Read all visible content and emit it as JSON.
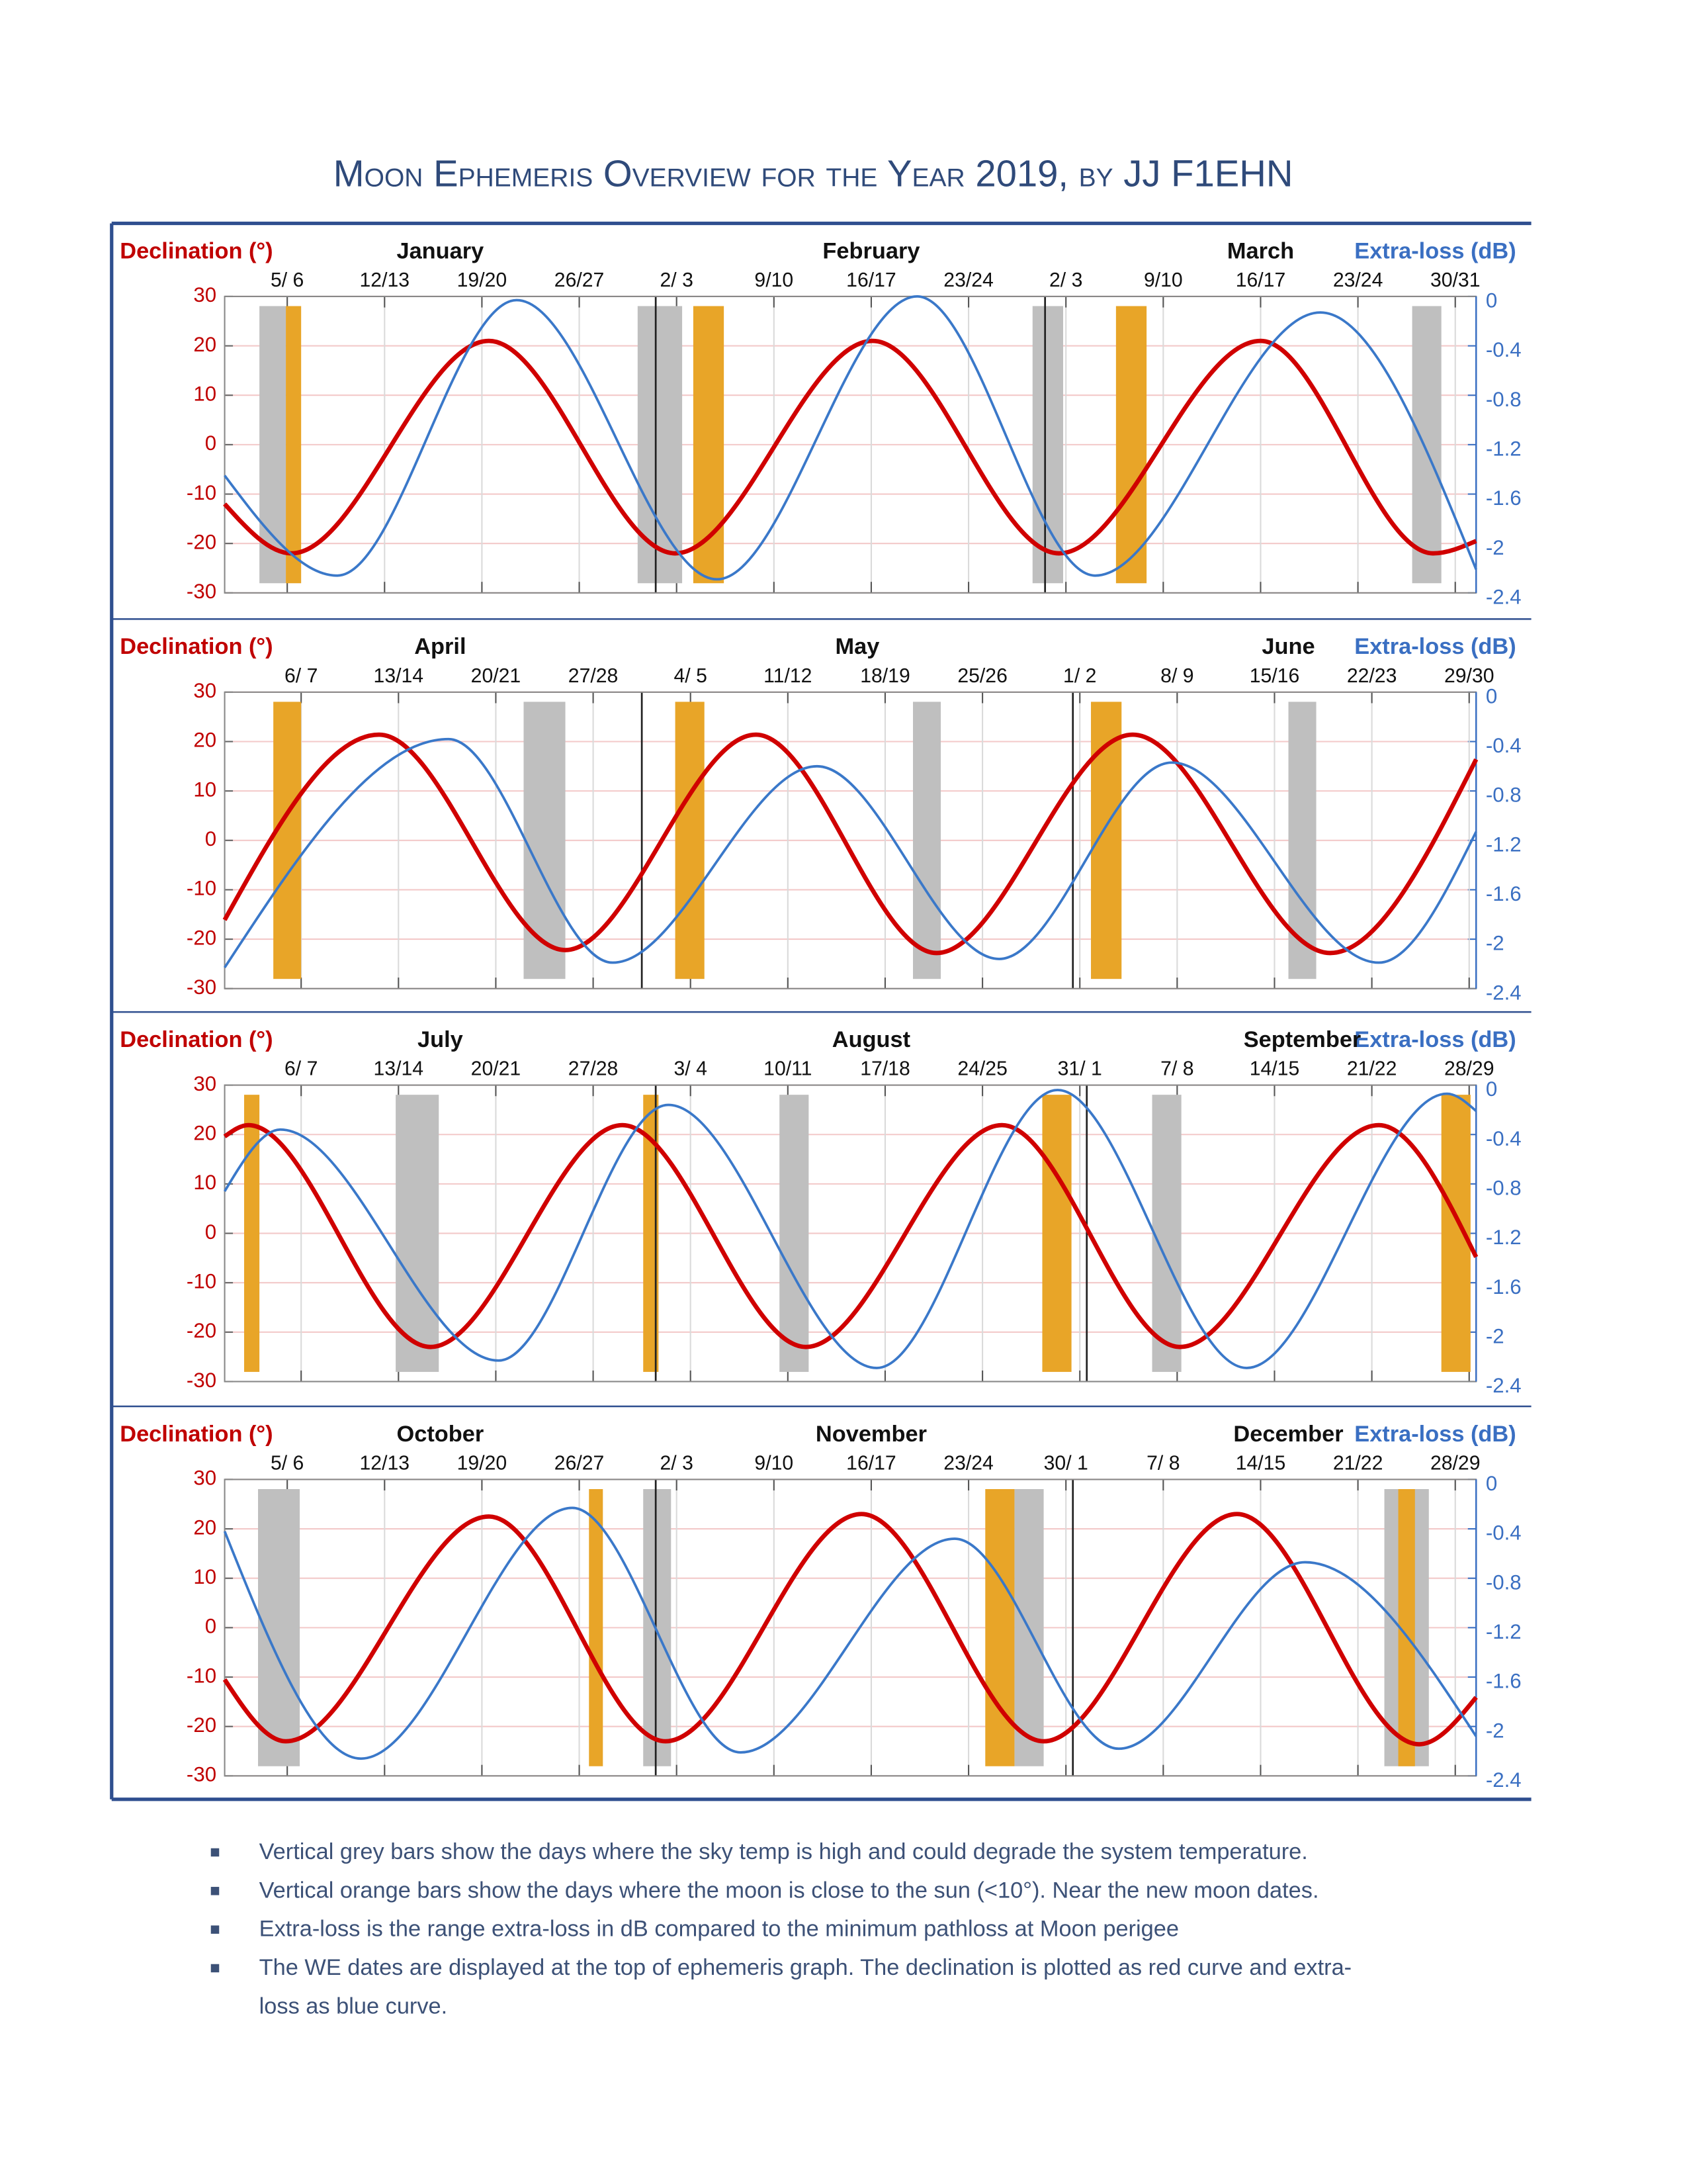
{
  "title": "Moon Ephemeris Overview for the Year 2019, by JJ F1EHN",
  "notes": [
    [
      "Vertical grey bars show the days where the sky temp is high and could degrade the system temperature."
    ],
    [
      "Vertical orange bars show the days where the moon is close to the sun (<10°). Near the new moon dates."
    ],
    [
      "Extra-loss is the range extra-loss in dB compared to the minimum pathloss at Moon perigee"
    ],
    [
      "The WE dates are displayed at the top of ephemeris graph. The declination is plotted as red curve and extra-",
      "loss as blue curve."
    ]
  ],
  "chart_data": [
    {
      "type": "line",
      "y_label": "Declination (°)",
      "y2_label": "Extra-loss (dB)",
      "months": [
        "January",
        "February",
        "March"
      ],
      "month_starts": [
        0,
        31,
        59
      ],
      "xlim": [
        0,
        90
      ],
      "xticks": [
        {
          "value": 4.5,
          "label": "5/ 6"
        },
        {
          "value": 11.5,
          "label": "12/13"
        },
        {
          "value": 18.5,
          "label": "19/20"
        },
        {
          "value": 25.5,
          "label": "26/27"
        },
        {
          "value": 32.5,
          "label": "2/ 3"
        },
        {
          "value": 39.5,
          "label": "9/10"
        },
        {
          "value": 46.5,
          "label": "16/17"
        },
        {
          "value": 53.5,
          "label": "23/24"
        },
        {
          "value": 60.5,
          "label": "2/ 3"
        },
        {
          "value": 67.5,
          "label": "9/10"
        },
        {
          "value": 74.5,
          "label": "16/17"
        },
        {
          "value": 81.5,
          "label": "23/24"
        },
        {
          "value": 88.5,
          "label": "30/31"
        }
      ],
      "ylim": [
        -30,
        30
      ],
      "yticks": [
        30,
        20,
        10,
        0,
        -10,
        -20,
        -30
      ],
      "y2lim": [
        -2.4,
        0
      ],
      "y2ticks": [
        0,
        -0.4,
        -0.8,
        -1.2,
        -1.6,
        -2,
        -2.4
      ],
      "grid": true,
      "bands": [
        {
          "color": "#bfbfbf",
          "ranges": [
            [
              2.5,
              4.4
            ],
            [
              29.7,
              32.9
            ],
            [
              58.1,
              60.3
            ],
            [
              85.4,
              87.5
            ]
          ]
        },
        {
          "color": "#e8a528",
          "ranges": [
            [
              4.4,
              5.5
            ],
            [
              33.7,
              35.9
            ],
            [
              64.1,
              66.3
            ]
          ]
        }
      ],
      "series": [
        {
          "color": "#d00000",
          "x": [
            0,
            4.8,
            19,
            32.4,
            46.6,
            60,
            74.5,
            86.9,
            90
          ],
          "values": [
            -12,
            -22,
            21,
            -22,
            21,
            -22,
            21,
            -22,
            -19.5
          ]
        },
        {
          "color": "#3a78c9",
          "axis": "y2",
          "x": [
            0,
            8.1,
            21,
            35.4,
            49.8,
            62.6,
            78.8,
            90
          ],
          "values": [
            -1.45,
            -2.26,
            -0.03,
            -2.29,
            0,
            -2.26,
            -0.13,
            -2.21
          ]
        }
      ]
    },
    {
      "type": "line",
      "y_label": "Declination (°)",
      "y2_label": "Extra-loss (dB)",
      "months": [
        "April",
        "May",
        "June"
      ],
      "month_starts": [
        0,
        30,
        61
      ],
      "xlim": [
        0,
        90
      ],
      "xticks": [
        {
          "value": 5.5,
          "label": "6/ 7"
        },
        {
          "value": 12.5,
          "label": "13/14"
        },
        {
          "value": 19.5,
          "label": "20/21"
        },
        {
          "value": 26.5,
          "label": "27/28"
        },
        {
          "value": 33.5,
          "label": "4/ 5"
        },
        {
          "value": 40.5,
          "label": "11/12"
        },
        {
          "value": 47.5,
          "label": "18/19"
        },
        {
          "value": 54.5,
          "label": "25/26"
        },
        {
          "value": 61.5,
          "label": "1/ 2"
        },
        {
          "value": 68.5,
          "label": "8/ 9"
        },
        {
          "value": 75.5,
          "label": "15/16"
        },
        {
          "value": 82.5,
          "label": "22/23"
        },
        {
          "value": 89.5,
          "label": "29/30"
        }
      ],
      "ylim": [
        -30,
        30
      ],
      "yticks": [
        30,
        20,
        10,
        0,
        -10,
        -20,
        -30
      ],
      "y2lim": [
        -2.4,
        0
      ],
      "y2ticks": [
        0,
        -0.4,
        -0.8,
        -1.2,
        -1.6,
        -2,
        -2.4
      ],
      "grid": true,
      "bands": [
        {
          "color": "#bfbfbf",
          "ranges": [
            [
              21.5,
              24.5
            ],
            [
              49.5,
              51.5
            ],
            [
              76.5,
              78.5
            ]
          ]
        },
        {
          "color": "#e8a528",
          "ranges": [
            [
              3.5,
              5.5
            ],
            [
              32.4,
              34.5
            ],
            [
              62.3,
              64.5
            ]
          ]
        }
      ],
      "series": [
        {
          "color": "#d00000",
          "x": [
            0,
            11.1,
            24.5,
            38.2,
            51.2,
            65.3,
            79.5,
            90
          ],
          "values": [
            -16.1,
            21.4,
            -22.2,
            21.4,
            -22.8,
            21.4,
            -22.8,
            16.4
          ]
        },
        {
          "color": "#3a78c9",
          "axis": "y2",
          "x": [
            0,
            16.1,
            27.9,
            42.6,
            55.7,
            68.1,
            83,
            90
          ],
          "values": [
            -2.23,
            -0.38,
            -2.19,
            -0.6,
            -2.16,
            -0.57,
            -2.19,
            -1.13
          ]
        }
      ]
    },
    {
      "type": "line",
      "y_label": "Declination (°)",
      "y2_label": "Extra-loss (dB)",
      "months": [
        "July",
        "August",
        "September"
      ],
      "month_starts": [
        0,
        31,
        62
      ],
      "xlim": [
        0,
        90
      ],
      "xticks": [
        {
          "value": 5.5,
          "label": "6/ 7"
        },
        {
          "value": 12.5,
          "label": "13/14"
        },
        {
          "value": 19.5,
          "label": "20/21"
        },
        {
          "value": 26.5,
          "label": "27/28"
        },
        {
          "value": 33.5,
          "label": "3/ 4"
        },
        {
          "value": 40.5,
          "label": "10/11"
        },
        {
          "value": 47.5,
          "label": "17/18"
        },
        {
          "value": 54.5,
          "label": "24/25"
        },
        {
          "value": 61.5,
          "label": "31/ 1"
        },
        {
          "value": 68.5,
          "label": "7/ 8"
        },
        {
          "value": 75.5,
          "label": "14/15"
        },
        {
          "value": 82.5,
          "label": "21/22"
        },
        {
          "value": 89.5,
          "label": "28/29"
        }
      ],
      "ylim": [
        -30,
        30
      ],
      "yticks": [
        30,
        20,
        10,
        0,
        -10,
        -20,
        -30
      ],
      "y2lim": [
        -2.4,
        0
      ],
      "y2ticks": [
        0,
        -0.4,
        -0.8,
        -1.2,
        -1.6,
        -2,
        -2.4
      ],
      "grid": true,
      "bands": [
        {
          "color": "#bfbfbf",
          "ranges": [
            [
              12.3,
              15.4
            ],
            [
              39.9,
              42
            ],
            [
              66.7,
              68.8
            ]
          ]
        },
        {
          "color": "#e8a528",
          "ranges": [
            [
              1.4,
              2.5
            ],
            [
              30.1,
              31.2
            ],
            [
              58.8,
              60.9
            ],
            [
              87.5,
              89.6
            ]
          ]
        }
      ],
      "series": [
        {
          "color": "#d00000",
          "x": [
            0,
            1.7,
            14.8,
            28.6,
            41.8,
            55.9,
            68.7,
            83,
            90
          ],
          "values": [
            19.6,
            21.9,
            -23,
            21.9,
            -23,
            21.9,
            -23,
            21.9,
            -4.8
          ]
        },
        {
          "color": "#3a78c9",
          "axis": "y2",
          "x": [
            0,
            4,
            19.7,
            31.9,
            46.9,
            59.9,
            73.5,
            87.9,
            90
          ],
          "values": [
            -0.86,
            -0.36,
            -2.23,
            -0.16,
            -2.29,
            -0.04,
            -2.29,
            -0.07,
            -0.21
          ]
        }
      ]
    },
    {
      "type": "line",
      "y_label": "Declination (°)",
      "y2_label": "Extra-loss (dB)",
      "months": [
        "October",
        "November",
        "December"
      ],
      "month_starts": [
        0,
        31,
        61
      ],
      "xlim": [
        0,
        90
      ],
      "xticks": [
        {
          "value": 4.5,
          "label": "5/ 6"
        },
        {
          "value": 11.5,
          "label": "12/13"
        },
        {
          "value": 18.5,
          "label": "19/20"
        },
        {
          "value": 25.5,
          "label": "26/27"
        },
        {
          "value": 32.5,
          "label": "2/ 3"
        },
        {
          "value": 39.5,
          "label": "9/10"
        },
        {
          "value": 46.5,
          "label": "16/17"
        },
        {
          "value": 53.5,
          "label": "23/24"
        },
        {
          "value": 60.5,
          "label": "30/ 1"
        },
        {
          "value": 67.5,
          "label": "7/ 8"
        },
        {
          "value": 74.5,
          "label": "14/15"
        },
        {
          "value": 81.5,
          "label": "21/22"
        },
        {
          "value": 88.5,
          "label": "28/29"
        }
      ],
      "ylim": [
        -30,
        30
      ],
      "yticks": [
        30,
        20,
        10,
        0,
        -10,
        -20,
        -30
      ],
      "y2lim": [
        -2.4,
        0
      ],
      "y2ticks": [
        0,
        -0.4,
        -0.8,
        -1.2,
        -1.6,
        -2,
        -2.4
      ],
      "grid": true,
      "bands": [
        {
          "color": "#bfbfbf",
          "ranges": [
            [
              2.4,
              5.4
            ],
            [
              30.1,
              32.1
            ],
            [
              56.8,
              58.9
            ],
            [
              83.4,
              86.6
            ]
          ]
        },
        {
          "color": "#e8a528",
          "ranges": [
            [
              26.2,
              27.2
            ],
            [
              54.7,
              56.8
            ],
            [
              84.4,
              85.6
            ]
          ]
        }
      ],
      "series": [
        {
          "color": "#d00000",
          "x": [
            0,
            4.4,
            19,
            31.7,
            45.8,
            58.9,
            72.8,
            85.9,
            90
          ],
          "values": [
            -10.5,
            -23,
            22.5,
            -23,
            23,
            -23,
            23,
            -23.6,
            -14.1
          ]
        },
        {
          "color": "#3a78c9",
          "axis": "y2",
          "x": [
            0,
            9.8,
            25,
            37.1,
            52.5,
            64.3,
            77.7,
            90
          ],
          "values": [
            -0.42,
            -2.26,
            -0.23,
            -2.21,
            -0.48,
            -2.18,
            -0.67,
            -2.08
          ]
        }
      ]
    }
  ]
}
